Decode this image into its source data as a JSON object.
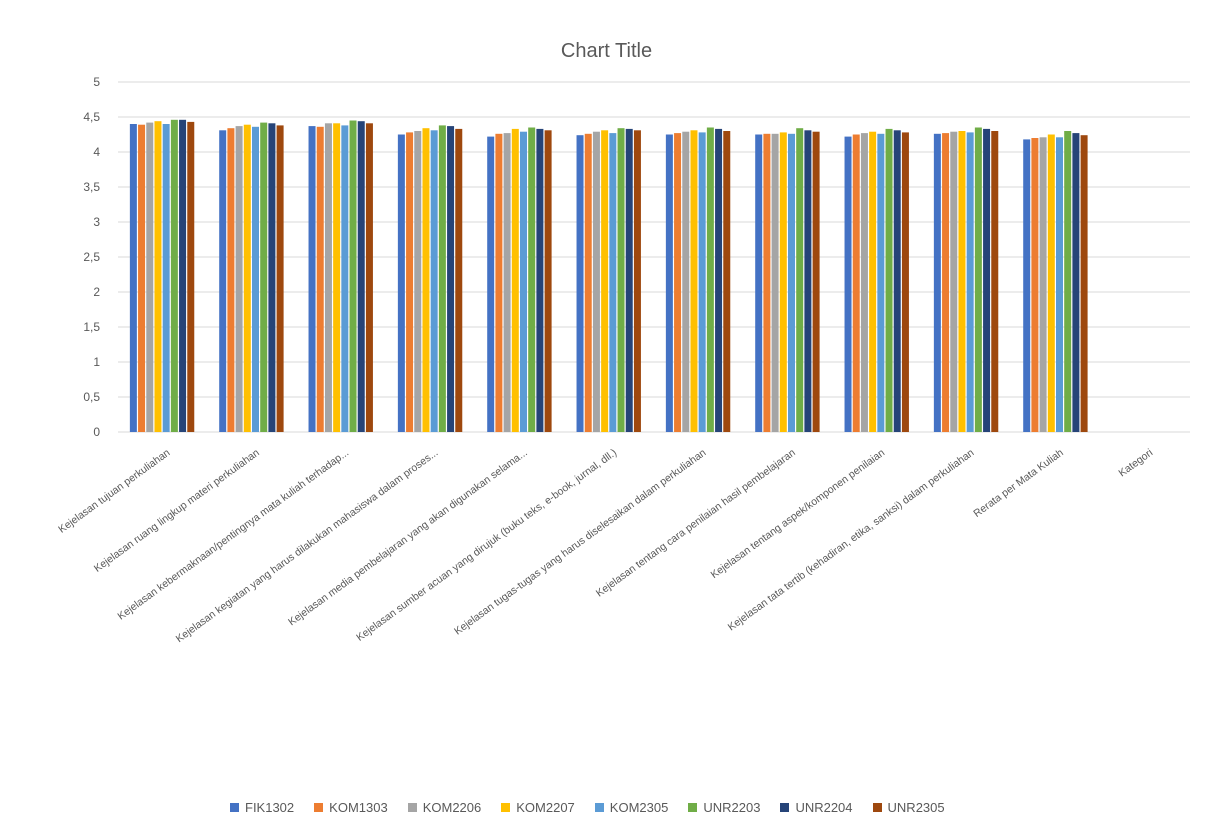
{
  "chart_data": {
    "type": "bar",
    "title": "Chart Title",
    "xlabel": "",
    "ylabel": "",
    "ylim": [
      0,
      5
    ],
    "yticks": [
      "0",
      "0,5",
      "1",
      "1,5",
      "2",
      "2,5",
      "3",
      "3,5",
      "4",
      "4,5",
      "5"
    ],
    "grid": true,
    "legend_position": "bottom",
    "categories": [
      "Kejelasan tujuan perkuliahan",
      "Kejelasan ruang lingkup materi perkuliahan",
      "Kejelasan kebermaknaan/pentingnya mata kuliah terhadap...",
      "Kejelasan kegiatan yang harus dilakukan mahasiswa dalam proses...",
      "Kejelasan media pembelajaran yang akan digunakan selama...",
      "Kejelasan sumber acuan yang dirujuk (buku teks, e-book, jurnal, dll.)",
      "Kejelasan tugas-tugas yang harus diselesaikan dalam perkuliahan",
      "Kejelasan tentang cara penilaian hasil pembelajaran",
      "Kejelasan tentang aspek/komponen penilaian",
      "Kejelasan tata tertib (kehadiran, etika, sanksi) dalam perkuliahan",
      "Rerata per Mata Kuliah",
      "Kategori"
    ],
    "series": [
      {
        "name": "FIK1302",
        "color": "#4472C4",
        "values": [
          4.4,
          4.31,
          4.37,
          4.25,
          4.22,
          4.24,
          4.25,
          4.25,
          4.22,
          4.26,
          4.18,
          null
        ]
      },
      {
        "name": "KOM1303",
        "color": "#ED7D31",
        "values": [
          4.39,
          4.34,
          4.36,
          4.28,
          4.26,
          4.26,
          4.27,
          4.26,
          4.25,
          4.27,
          4.2,
          null
        ]
      },
      {
        "name": "KOM2206",
        "color": "#A5A5A5",
        "values": [
          4.42,
          4.37,
          4.41,
          4.3,
          4.27,
          4.29,
          4.29,
          4.26,
          4.27,
          4.29,
          4.21,
          null
        ]
      },
      {
        "name": "KOM2207",
        "color": "#FFC000",
        "values": [
          4.44,
          4.39,
          4.41,
          4.34,
          4.33,
          4.31,
          4.31,
          4.28,
          4.29,
          4.3,
          4.25,
          null
        ]
      },
      {
        "name": "KOM2305",
        "color": "#5B9BD5",
        "values": [
          4.4,
          4.36,
          4.38,
          4.31,
          4.29,
          4.27,
          4.28,
          4.26,
          4.26,
          4.28,
          4.21,
          null
        ]
      },
      {
        "name": "UNR2203",
        "color": "#70AD47",
        "values": [
          4.46,
          4.42,
          4.45,
          4.38,
          4.35,
          4.34,
          4.35,
          4.34,
          4.33,
          4.35,
          4.3,
          null
        ]
      },
      {
        "name": "UNR2204",
        "color": "#264478",
        "values": [
          4.46,
          4.41,
          4.44,
          4.37,
          4.33,
          4.33,
          4.33,
          4.31,
          4.31,
          4.33,
          4.27,
          null
        ]
      },
      {
        "name": "UNR2305",
        "color": "#9E480E",
        "values": [
          4.43,
          4.38,
          4.41,
          4.33,
          4.31,
          4.31,
          4.3,
          4.29,
          4.28,
          4.3,
          4.24,
          null
        ]
      }
    ]
  }
}
